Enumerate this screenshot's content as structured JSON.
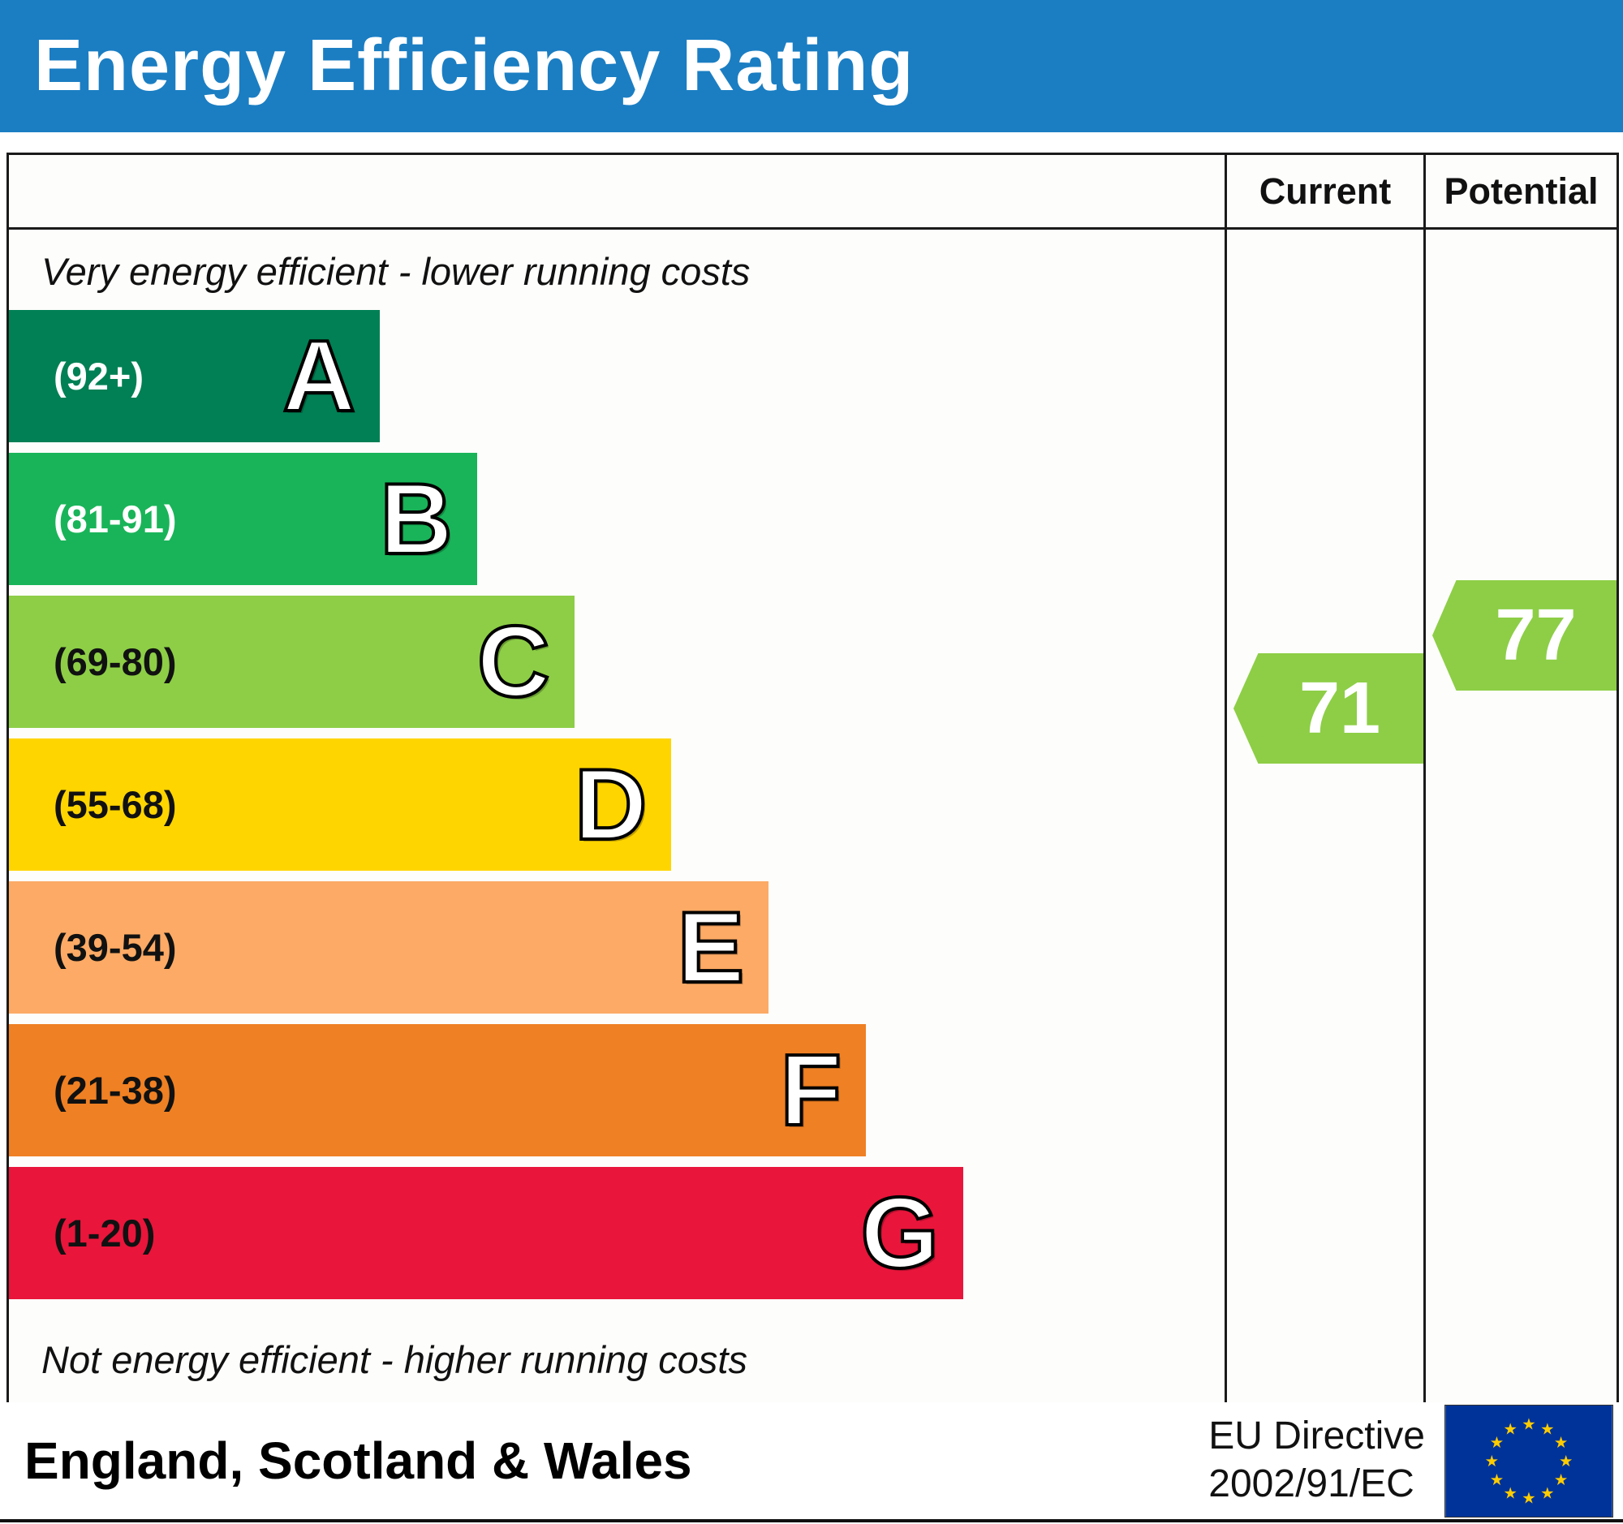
{
  "header": {
    "title": "Energy Efficiency Rating",
    "bg_color": "#1b7ec3",
    "text_color": "#ffffff"
  },
  "columns": {
    "current": "Current",
    "potential": "Potential"
  },
  "notes": {
    "top": "Very energy efficient - lower running costs",
    "bottom": "Not energy efficient - higher running costs"
  },
  "bands": [
    {
      "letter": "A",
      "range": "(92+)",
      "color": "#008054",
      "text_color": "#ffffff",
      "width_pct": 30.5
    },
    {
      "letter": "B",
      "range": "(81-91)",
      "color": "#19b459",
      "text_color": "#ffffff",
      "width_pct": 38.5
    },
    {
      "letter": "C",
      "range": "(69-80)",
      "color": "#8dce46",
      "text_color": "#111111",
      "width_pct": 46.5
    },
    {
      "letter": "D",
      "range": "(55-68)",
      "color": "#ffd500",
      "text_color": "#111111",
      "width_pct": 54.5
    },
    {
      "letter": "E",
      "range": "(39-54)",
      "color": "#fcaa65",
      "text_color": "#111111",
      "width_pct": 62.5
    },
    {
      "letter": "F",
      "range": "(21-38)",
      "color": "#ef8023",
      "text_color": "#111111",
      "width_pct": 70.5
    },
    {
      "letter": "G",
      "range": "(1-20)",
      "color": "#e9153b",
      "text_color": "#111111",
      "width_pct": 78.5
    }
  ],
  "ratings": {
    "current": {
      "value": "71",
      "band": "C",
      "color": "#8dce46"
    },
    "potential": {
      "value": "77",
      "band": "C",
      "color": "#8dce46"
    }
  },
  "footer": {
    "region": "England, Scotland & Wales",
    "directive_line1": "EU Directive",
    "directive_line2": "2002/91/EC",
    "flag_bg": "#003399",
    "star_color": "#ffcc00"
  },
  "chart_data": {
    "type": "bar",
    "title": "Energy Efficiency Rating",
    "categories": [
      "A (92+)",
      "B (81-91)",
      "C (69-80)",
      "D (55-68)",
      "E (39-54)",
      "F (21-38)",
      "G (1-20)"
    ],
    "band_colors": [
      "#008054",
      "#19b459",
      "#8dce46",
      "#ffd500",
      "#fcaa65",
      "#ef8023",
      "#e9153b"
    ],
    "band_relative_widths_pct": [
      30.5,
      38.5,
      46.5,
      54.5,
      62.5,
      70.5,
      78.5
    ],
    "series": [
      {
        "name": "Current",
        "values": [
          71
        ]
      },
      {
        "name": "Potential",
        "values": [
          77
        ]
      }
    ],
    "current": 71,
    "potential": 77,
    "scale": [
      1,
      100
    ],
    "top_annotation": "Very energy efficient - lower running costs",
    "bottom_annotation": "Not energy efficient - higher running costs",
    "region": "England, Scotland & Wales",
    "directive": "EU Directive 2002/91/EC",
    "legend_position": "right-columns"
  }
}
